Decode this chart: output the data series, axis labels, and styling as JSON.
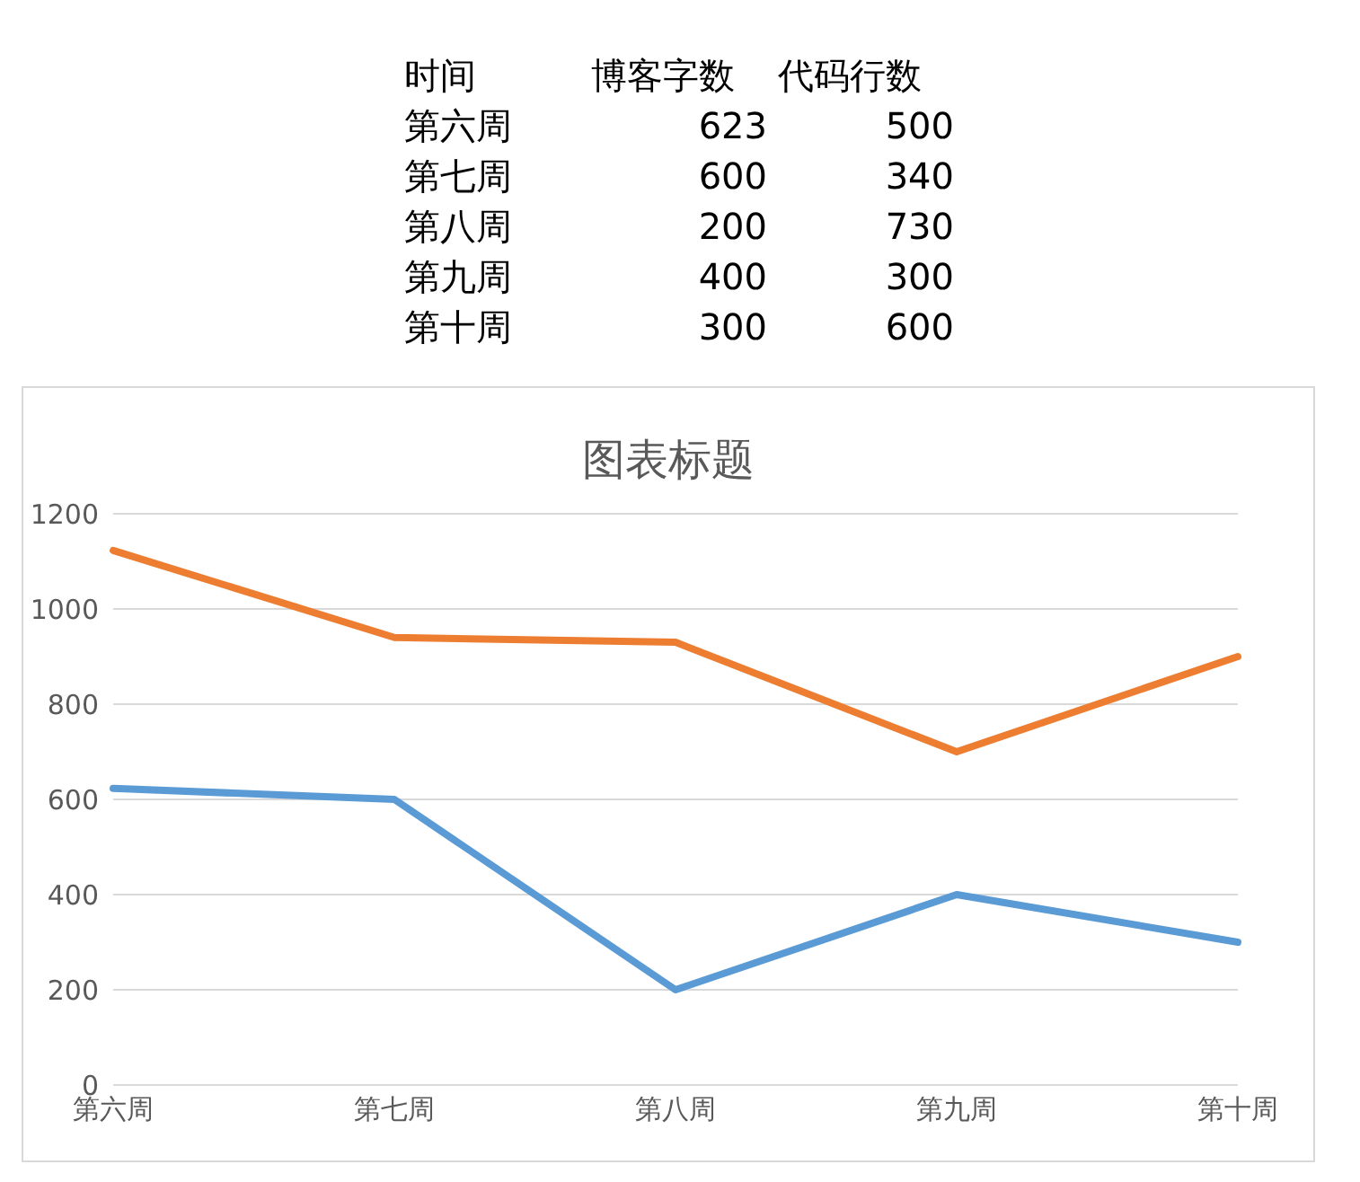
{
  "chart_data": [
    {
      "type": "other",
      "annotations": [
        "时间"
      ],
      "categories": [
        "第六周",
        "第七周",
        "第八周",
        "第九周",
        "第十周"
      ],
      "data_labels": true,
      "series": [
        {
          "name": "博客字数",
          "values": [
            623,
            600,
            200,
            400,
            300
          ]
        },
        {
          "name": "代码行数",
          "values": [
            500,
            340,
            730,
            300,
            600
          ]
        }
      ]
    },
    {
      "type": "line",
      "title": "图表标题",
      "categories": [
        "第六周",
        "第七周",
        "第八周",
        "第九周",
        "第十周"
      ],
      "series": [
        {
          "color": "#5b9bd5",
          "values": [
            623,
            600,
            200,
            400,
            300
          ]
        },
        {
          "color": "#ed7d31",
          "values": [
            1123,
            940,
            930,
            700,
            900
          ]
        }
      ],
      "ylim": [
        0,
        1200
      ],
      "yticks": [
        0,
        200,
        400,
        600,
        800,
        1000,
        1200
      ],
      "grid": "y",
      "legend": false,
      "marker": "none",
      "line_style": "solid"
    }
  ]
}
